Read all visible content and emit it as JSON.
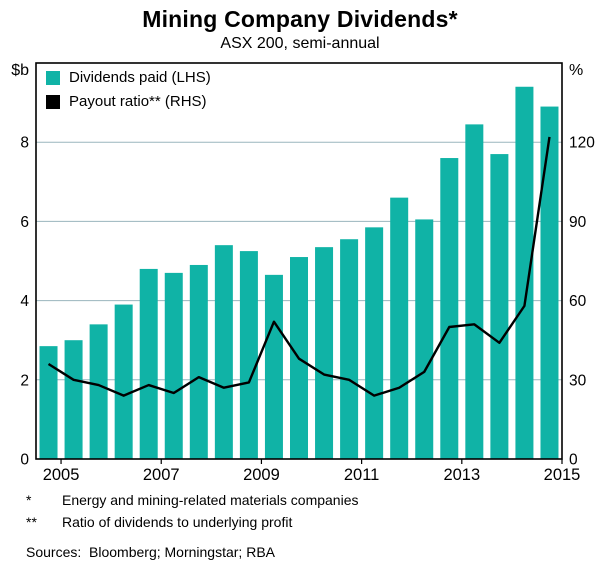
{
  "title": "Mining Company Dividends*",
  "subtitle": "ASX 200, semi-annual",
  "left_axis": {
    "unit": "$b"
  },
  "right_axis": {
    "unit": "%"
  },
  "legend": [
    {
      "label": "Dividends paid (LHS)",
      "color": "#10b3a6"
    },
    {
      "label": "Payout ratio** (RHS)",
      "color": "#000000"
    }
  ],
  "footnotes": [
    {
      "marker": "*",
      "text": "Energy and mining-related materials companies"
    },
    {
      "marker": "**",
      "text": "Ratio of dividends to underlying profit"
    }
  ],
  "sources": "Sources:  Bloomberg; Morningstar; RBA",
  "chart_data": {
    "type": "combo",
    "title": "Mining Company Dividends*",
    "subtitle": "ASX 200, semi-annual",
    "x": [
      "2004:H2",
      "2005:H1",
      "2005:H2",
      "2006:H1",
      "2006:H2",
      "2007:H1",
      "2007:H2",
      "2008:H1",
      "2008:H2",
      "2009:H1",
      "2009:H2",
      "2010:H1",
      "2010:H2",
      "2011:H1",
      "2011:H2",
      "2012:H1",
      "2012:H2",
      "2013:H1",
      "2013:H2",
      "2014:H1",
      "2014:H2"
    ],
    "series": [
      {
        "name": "Dividends paid (LHS)",
        "type": "bar",
        "axis": "left",
        "unit": "$b",
        "color": "#10b3a6",
        "values": [
          2.85,
          3.0,
          3.4,
          3.9,
          4.8,
          4.7,
          4.9,
          5.4,
          5.25,
          4.65,
          5.1,
          5.35,
          5.55,
          5.85,
          6.6,
          6.05,
          7.6,
          8.45,
          7.7,
          9.4,
          8.9
        ]
      },
      {
        "name": "Payout ratio** (RHS)",
        "type": "line",
        "axis": "right",
        "unit": "%",
        "color": "#000000",
        "values": [
          36,
          30,
          28,
          24,
          28,
          25,
          31,
          27,
          29,
          52,
          38,
          32,
          30,
          24,
          27,
          33,
          50,
          51,
          44,
          58,
          122
        ]
      }
    ],
    "left_ylim": [
      0,
      10
    ],
    "right_ylim": [
      0,
      150
    ],
    "left_ticks": [
      0,
      2,
      4,
      6,
      8
    ],
    "right_ticks": [
      0,
      30,
      60,
      90,
      120
    ],
    "x_tick_years": [
      2005,
      2007,
      2009,
      2011,
      2013,
      2015
    ],
    "x_range": [
      2004.5,
      2015.0
    ],
    "grid": "horizontal",
    "legend_position": "top-left"
  }
}
